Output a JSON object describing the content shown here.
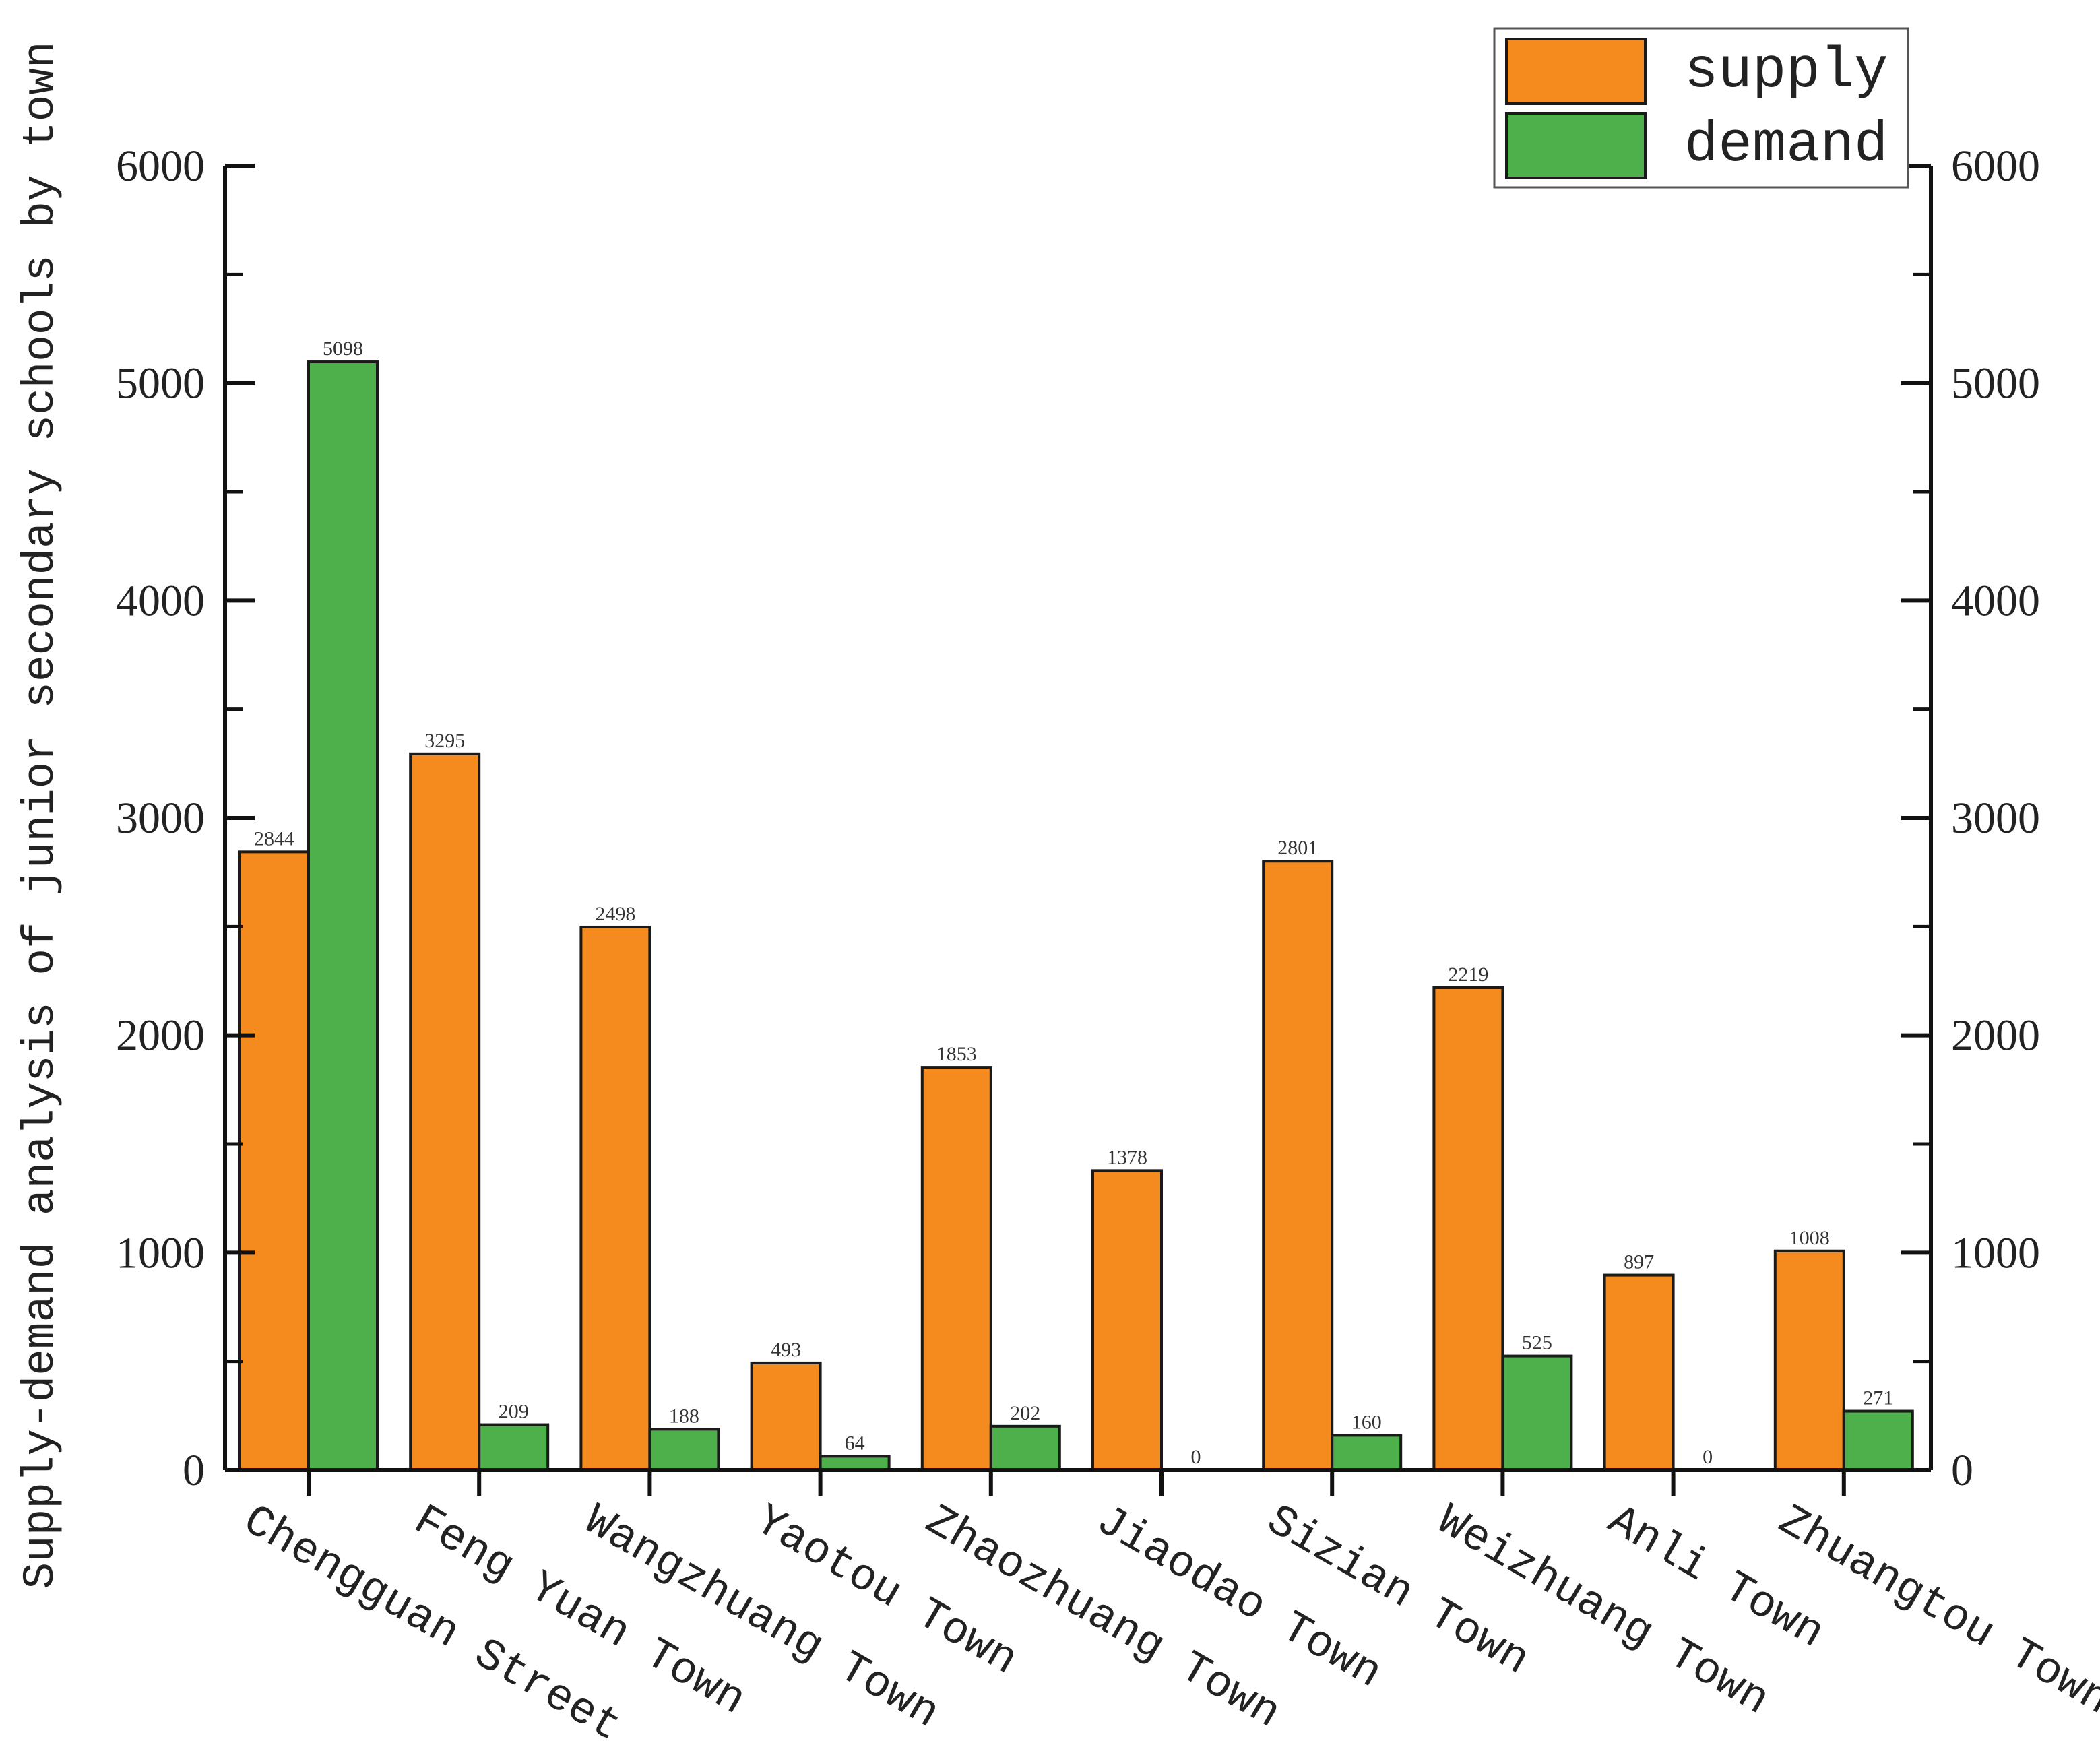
{
  "chart_data": {
    "type": "bar",
    "title": "",
    "xlabel": "",
    "ylabel": "Supply-demand analysis of junior secondary schools by town",
    "ylim": [
      0,
      6000
    ],
    "yticks": [
      0,
      1000,
      2000,
      3000,
      4000,
      5000,
      6000
    ],
    "ytick_labels": [
      "0",
      "1000",
      "2000",
      "3000",
      "4000",
      "5000",
      "6000"
    ],
    "right_axis": true,
    "grid": false,
    "legend_position": "top-right",
    "categories": [
      "Chengguan Street",
      "Feng Yuan Town",
      "Wangzhuang Town",
      "Yaotou Town",
      "Zhaozhuang Town",
      "Jiaodao Town",
      "Sizian Town",
      "Weizhuang Town",
      "Anli Town",
      "Zhuangtou Town"
    ],
    "series": [
      {
        "name": "supply",
        "color": "#f58a1f",
        "values": [
          2844,
          3295,
          2498,
          493,
          1853,
          1378,
          2801,
          2219,
          897,
          1008
        ],
        "labels": [
          "2844",
          "3295",
          "2498",
          "493",
          "1853",
          "1378",
          "2801",
          "2219",
          "897",
          "1008"
        ]
      },
      {
        "name": "demand",
        "color": "#4db04a",
        "values": [
          5098,
          209,
          188,
          64,
          202,
          0,
          160,
          525,
          0,
          271
        ],
        "labels": [
          "5098",
          "209",
          "188",
          "64",
          "202",
          "0",
          "160",
          "525",
          "0",
          "271"
        ]
      }
    ]
  }
}
